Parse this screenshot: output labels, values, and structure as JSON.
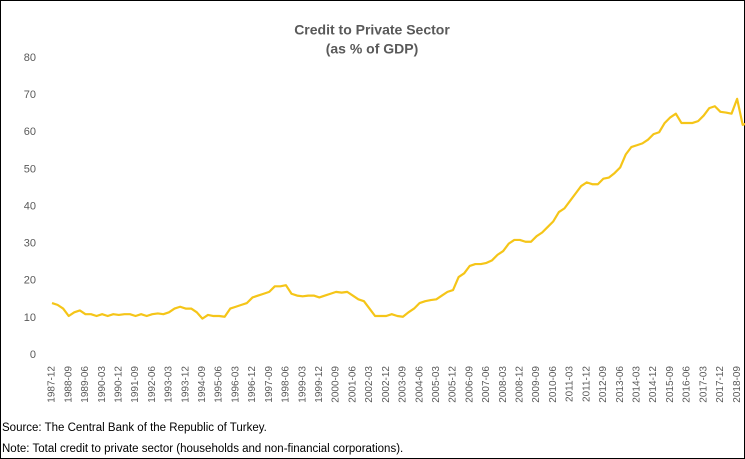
{
  "chart_data": {
    "type": "line",
    "title": "Credit to Private Sector",
    "subtitle": "(as % of GDP)",
    "notes": [
      "Source: The Central Bank of the Republic of Turkey.",
      "Note: Total credit to private sector (households and non-financial corporations)."
    ],
    "categories": [
      "1987-12",
      null,
      null,
      "1988-09",
      null,
      null,
      "1989-06",
      null,
      null,
      "1990-03",
      null,
      null,
      "1990-12",
      null,
      null,
      "1991-09",
      null,
      null,
      "1992-06",
      null,
      null,
      "1993-03",
      null,
      null,
      "1993-12",
      null,
      null,
      "1994-09",
      null,
      null,
      "1995-06",
      null,
      null,
      "1996-03",
      null,
      null,
      "1996-12",
      null,
      null,
      "1997-09",
      null,
      null,
      "1998-06",
      null,
      null,
      "1999-03",
      null,
      null,
      "1999-12",
      null,
      null,
      "2000-09",
      null,
      null,
      "2001-06",
      null,
      null,
      "2002-03",
      null,
      null,
      "2002-12",
      null,
      null,
      "2003-09",
      null,
      null,
      "2004-06",
      null,
      null,
      "2005-03",
      null,
      null,
      "2005-12",
      null,
      null,
      "2006-09",
      null,
      null,
      "2007-06",
      null,
      null,
      "2008-03",
      null,
      null,
      "2008-12",
      null,
      null,
      "2009-09",
      null,
      null,
      "2010-06",
      null,
      null,
      "2011-03",
      null,
      null,
      "2011-12",
      null,
      null,
      "2012-09",
      null,
      null,
      "2013-06",
      null,
      null,
      "2014-03",
      null,
      null,
      "2014-12",
      null,
      null,
      "2015-09",
      null,
      null,
      "2016-06",
      null,
      null,
      "2017-03",
      null,
      null,
      "2017-12",
      null,
      null,
      "2018-09",
      null,
      null
    ],
    "series": [
      {
        "name": "Credit to private sector",
        "color": "#f5c518",
        "values": [
          14,
          13.5,
          12.5,
          10.5,
          11.5,
          12,
          11,
          11,
          10.5,
          11,
          10.5,
          11,
          10.8,
          11,
          11,
          10.5,
          11,
          10.5,
          11,
          11.2,
          11,
          11.5,
          12.5,
          13,
          12.5,
          12.5,
          11.5,
          9.8,
          10.8,
          10.5,
          10.5,
          10.3,
          12.5,
          13,
          13.5,
          14,
          15.5,
          16,
          16.5,
          17,
          18.5,
          18.5,
          18.8,
          16.5,
          16,
          15.8,
          16,
          16,
          15.5,
          16,
          16.5,
          17,
          16.8,
          17,
          16,
          15,
          14.5,
          12.5,
          10.5,
          10.5,
          10.5,
          11,
          10.5,
          10.3,
          11.5,
          12.5,
          14,
          14.5,
          14.8,
          15,
          16,
          17,
          17.5,
          21,
          22,
          24,
          24.5,
          24.5,
          24.8,
          25.5,
          27,
          28,
          30,
          31,
          31,
          30.5,
          30.5,
          32,
          33,
          34.5,
          36,
          38.5,
          39.5,
          41.5,
          43.5,
          45.5,
          46.5,
          46,
          46,
          47.5,
          47.8,
          49,
          50.5,
          54,
          56,
          56.5,
          57,
          58,
          59.5,
          60,
          62.5,
          64,
          65,
          62.5,
          62.5,
          62.5,
          63,
          64.5,
          66.5,
          67,
          65.5,
          65.3,
          65,
          69,
          62,
          62.5
        ]
      }
    ],
    "ylim": [
      0,
      80
    ],
    "yticks": [
      0,
      10,
      20,
      30,
      40,
      50,
      60,
      70,
      80
    ],
    "grid": false
  }
}
